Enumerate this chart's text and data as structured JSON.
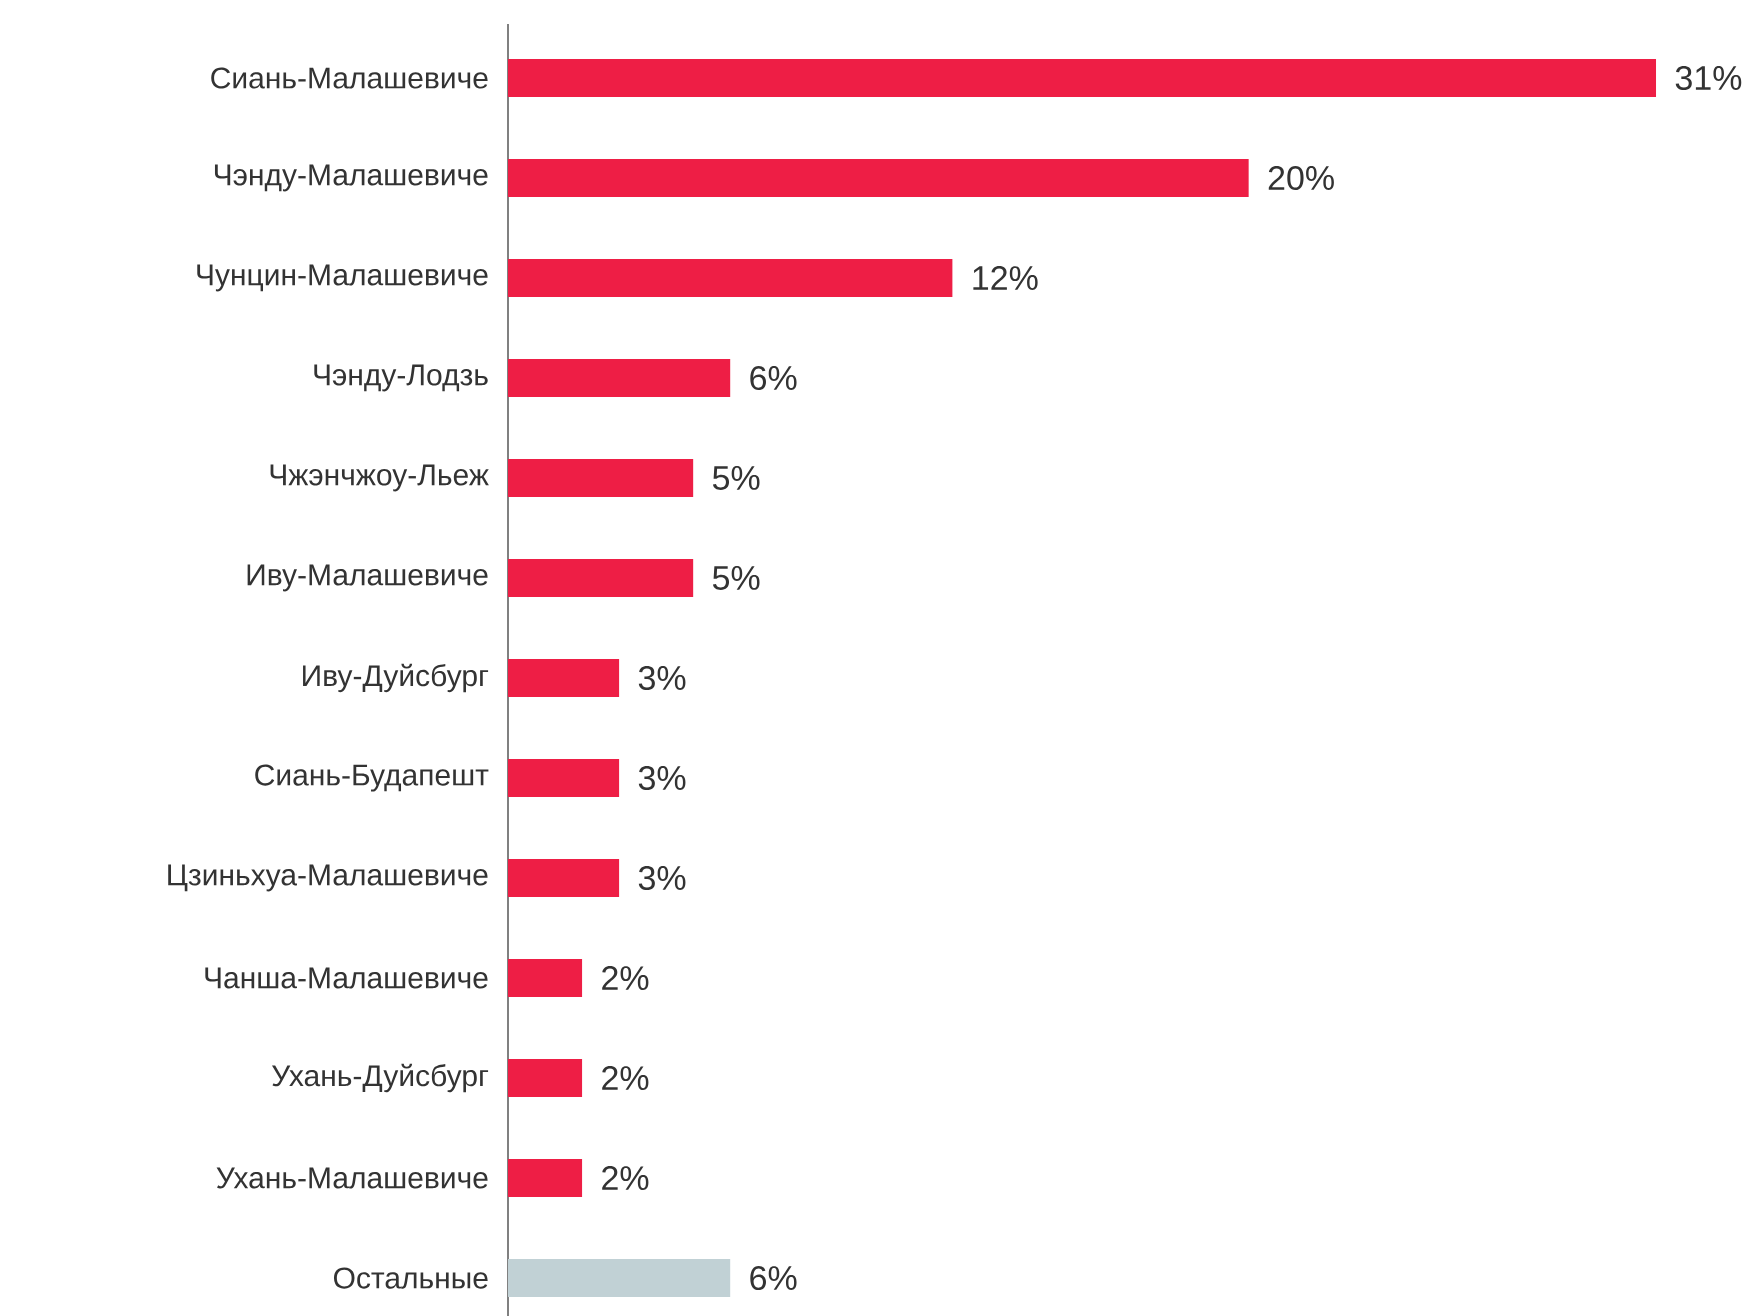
{
  "chart_data": {
    "type": "bar",
    "orientation": "horizontal",
    "categories": [
      "Сиань-Малашевиче",
      "Чэнду-Малашевиче",
      "Чунцин-Малашевиче",
      "Чэнду-Лодзь",
      "Чжэнчжоу-Льеж",
      "Иву-Малашевиче",
      "Иву-Дуйсбург",
      "Сиань-Будапешт",
      "Цзиньхуа-Малашевиче",
      "Чанша-Малашевиче",
      "Ухань-Дуйсбург",
      "Ухань-Малашевиче",
      "Остальные"
    ],
    "values": [
      31,
      20,
      12,
      6,
      5,
      5,
      3,
      3,
      3,
      2,
      2,
      2,
      6
    ],
    "value_labels": [
      "31%",
      "20%",
      "12%",
      "6%",
      "5%",
      "5%",
      "3%",
      "3%",
      "3%",
      "2%",
      "2%",
      "2%",
      "6%"
    ],
    "colors": [
      "#ee1e45",
      "#ee1e45",
      "#ee1e45",
      "#ee1e45",
      "#ee1e45",
      "#ee1e45",
      "#ee1e45",
      "#ee1e45",
      "#ee1e45",
      "#ee1e45",
      "#ee1e45",
      "#ee1e45",
      "#c1d1d5"
    ]
  }
}
